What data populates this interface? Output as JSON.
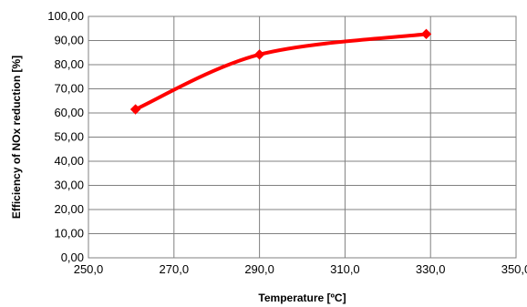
{
  "chart_data": {
    "type": "line",
    "title": "",
    "xlabel": "Temperature [ºC]",
    "ylabel": "Efficiency of  NOx reduction  [%]",
    "xlim": [
      250,
      350
    ],
    "ylim": [
      0,
      100
    ],
    "x_ticks": [
      "250,0",
      "270,0",
      "290,0",
      "310,0",
      "330,0",
      "350,0"
    ],
    "y_ticks": [
      "0,00",
      "10,00",
      "20,00",
      "30,00",
      "40,00",
      "50,00",
      "60,00",
      "70,00",
      "80,00",
      "90,00",
      "100,00"
    ],
    "grid": true,
    "legend": "none",
    "smooth": true,
    "series": [
      {
        "color": "#ff0000",
        "marker": "diamond",
        "x": [
          261,
          290,
          329
        ],
        "y": [
          61.5,
          84.2,
          92.7
        ]
      }
    ]
  }
}
